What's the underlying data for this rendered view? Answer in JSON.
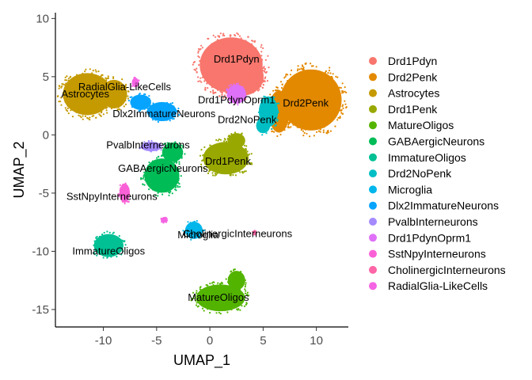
{
  "chart_data": {
    "type": "scatter",
    "title": "",
    "xlabel": "UMAP_1",
    "ylabel": "UMAP_2",
    "xlim": [
      -14.5,
      13
    ],
    "ylim": [
      -16.5,
      10.5
    ],
    "xticks": [
      -10,
      -5,
      0,
      5,
      10
    ],
    "xtick_labels": [
      "-10",
      "-5",
      "0",
      "5",
      "10"
    ],
    "yticks": [
      10,
      5,
      0,
      -5,
      -10,
      -15
    ],
    "ytick_labels": [
      "10",
      "5",
      "0",
      "-5",
      "-10",
      "-15"
    ],
    "grid": false,
    "legend_position": "right",
    "series": [
      {
        "name": "Drd1Pdyn",
        "color": "#F8766D",
        "label_pos": [
          2.5,
          6.5
        ],
        "blobs": [
          [
            2.0,
            6.0,
            3.6,
            2.9
          ],
          [
            3.0,
            5.0,
            2.5,
            2.0
          ]
        ]
      },
      {
        "name": "Drd2Penk",
        "color": "#E38900",
        "label_pos": [
          9.0,
          2.7
        ],
        "blobs": [
          [
            9.5,
            3.0,
            3.5,
            3.2
          ],
          [
            6.5,
            2.0,
            1.2,
            2.2
          ]
        ]
      },
      {
        "name": "Astrocytes",
        "color": "#C49A00",
        "label_pos": [
          -11.7,
          3.5
        ],
        "blobs": [
          [
            -11.5,
            3.5,
            2.8,
            2.2
          ],
          [
            -9.0,
            3.5,
            1.5,
            1.5
          ]
        ]
      },
      {
        "name": "Drd1Penk",
        "color": "#99A800",
        "label_pos": [
          1.7,
          -2.3
        ],
        "blobs": [
          [
            1.5,
            -2.0,
            2.6,
            1.7
          ],
          [
            2.5,
            -0.5,
            1.0,
            0.8
          ]
        ]
      },
      {
        "name": "MatureOligos",
        "color": "#53B400",
        "label_pos": [
          0.8,
          -14.0
        ],
        "blobs": [
          [
            1.0,
            -14.0,
            2.8,
            1.4
          ],
          [
            2.5,
            -12.5,
            1.0,
            1.0
          ]
        ]
      },
      {
        "name": "GABAergicNeurons",
        "color": "#00BC56",
        "label_pos": [
          -4.4,
          -2.9
        ],
        "blobs": [
          [
            -4.5,
            -3.5,
            2.0,
            1.8
          ],
          [
            -3.5,
            -1.5,
            1.2,
            1.0
          ]
        ]
      },
      {
        "name": "ImmatureOligos",
        "color": "#00C094",
        "label_pos": [
          -9.5,
          -10.0
        ],
        "blobs": [
          [
            -9.5,
            -9.5,
            1.7,
            1.2
          ]
        ]
      },
      {
        "name": "Drd2NoPenk",
        "color": "#00BFC4",
        "label_pos": [
          3.5,
          1.3
        ],
        "blobs": [
          [
            5.5,
            2.0,
            1.1,
            1.6
          ],
          [
            5.0,
            0.8,
            0.8,
            0.8
          ]
        ]
      },
      {
        "name": "Microglia",
        "color": "#00B6EB",
        "label_pos": [
          -1.1,
          -8.6
        ],
        "blobs": [
          [
            -1.5,
            -8.2,
            1.0,
            0.9
          ]
        ]
      },
      {
        "name": "Dlx2ImmatureNeurons",
        "color": "#06A4FF",
        "label_pos": [
          -4.3,
          1.8
        ],
        "blobs": [
          [
            -4.5,
            2.0,
            1.7,
            1.0
          ],
          [
            -6.5,
            2.8,
            1.2,
            0.8
          ]
        ]
      },
      {
        "name": "PvalbInterneurons",
        "color": "#A58AFF",
        "label_pos": [
          -5.8,
          -0.9
        ],
        "blobs": [
          [
            -5.5,
            -1.0,
            1.2,
            0.5
          ]
        ]
      },
      {
        "name": "Drd1PdynOprm1",
        "color": "#DF70F8",
        "label_pos": [
          2.5,
          3.0
        ],
        "blobs": [
          [
            2.5,
            3.5,
            1.1,
            1.0
          ]
        ]
      },
      {
        "name": "SstNpyInterneurons",
        "color": "#FB61D7",
        "label_pos": [
          -9.2,
          -5.3
        ],
        "blobs": [
          [
            -8.0,
            -5.0,
            0.6,
            1.0
          ]
        ]
      },
      {
        "name": "CholinergicInterneurons",
        "color": "#FF66A8",
        "label_pos": [
          2.6,
          -8.5
        ],
        "blobs": [
          [
            4.2,
            -8.4,
            0.2,
            0.2
          ]
        ]
      },
      {
        "name": "RadialGlia-LikeCells",
        "color": "#F564E3",
        "label_pos": [
          -8.0,
          4.1
        ],
        "blobs": [
          [
            -7.0,
            4.5,
            0.4,
            0.5
          ],
          [
            -4.3,
            -7.3,
            0.3,
            0.3
          ]
        ]
      }
    ]
  }
}
